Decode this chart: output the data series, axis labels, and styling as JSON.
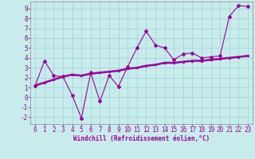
{
  "xlabel": "Windchill (Refroidissement éolien,°C)",
  "bg_color": "#c8ecec",
  "grid_color": "#a8d8d8",
  "line_color": "#990099",
  "spine_color": "#888888",
  "x_jagged": [
    0,
    1,
    2,
    3,
    4,
    5,
    6,
    7,
    8,
    9,
    10,
    11,
    12,
    13,
    14,
    15,
    16,
    17,
    18,
    19,
    20,
    21,
    22,
    23
  ],
  "y_jagged": [
    1.2,
    3.7,
    2.2,
    2.1,
    0.2,
    -2.1,
    2.5,
    -0.4,
    2.2,
    1.1,
    3.1,
    5.0,
    6.7,
    5.3,
    5.0,
    3.8,
    4.4,
    4.5,
    4.0,
    4.1,
    4.2,
    8.2,
    9.3,
    9.2
  ],
  "x_trend": [
    0,
    1,
    2,
    3,
    4,
    5,
    6,
    7,
    8,
    9,
    10,
    11,
    12,
    13,
    14,
    15,
    16,
    17,
    18,
    19,
    20,
    21,
    22,
    23
  ],
  "y_trend": [
    1.2,
    1.5,
    1.8,
    2.1,
    2.3,
    2.2,
    2.4,
    2.5,
    2.6,
    2.7,
    2.9,
    3.0,
    3.2,
    3.3,
    3.5,
    3.5,
    3.6,
    3.7,
    3.7,
    3.8,
    3.9,
    4.0,
    4.1,
    4.2
  ],
  "xlim": [
    -0.5,
    23.5
  ],
  "ylim": [
    -2.7,
    9.7
  ],
  "yticks": [
    -2,
    -1,
    0,
    1,
    2,
    3,
    4,
    5,
    6,
    7,
    8,
    9
  ],
  "xticks": [
    0,
    1,
    2,
    3,
    4,
    5,
    6,
    7,
    8,
    9,
    10,
    11,
    12,
    13,
    14,
    15,
    16,
    17,
    18,
    19,
    20,
    21,
    22,
    23
  ],
  "tick_fontsize": 5.5,
  "xlabel_fontsize": 5.5
}
